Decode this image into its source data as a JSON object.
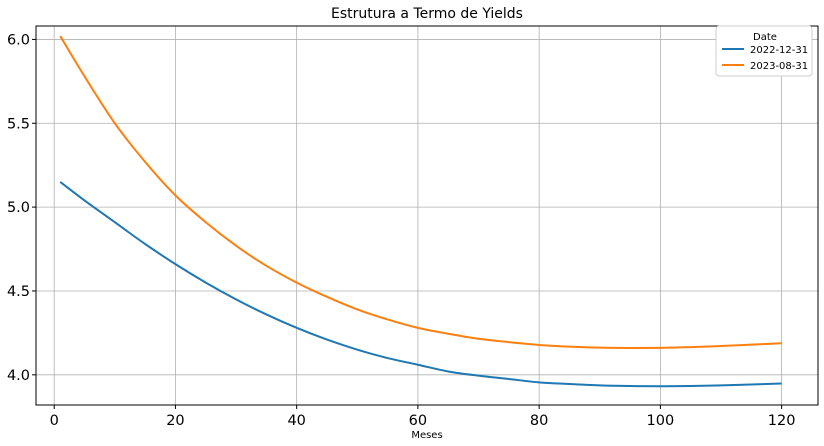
{
  "chart_data": {
    "type": "line",
    "title": "Estrutura a Termo de Yields",
    "xlabel": "Meses",
    "ylabel": "",
    "xlim": [
      -3,
      126
    ],
    "ylim": [
      3.82,
      6.08
    ],
    "xticks": [
      0,
      20,
      40,
      60,
      80,
      100,
      120
    ],
    "yticks": [
      4.0,
      4.5,
      5.0,
      5.5,
      6.0
    ],
    "xtick_labels": [
      "0",
      "20",
      "40",
      "60",
      "80",
      "100",
      "120"
    ],
    "ytick_labels": [
      "4.0",
      "4.5",
      "5.0",
      "5.5",
      "6.0"
    ],
    "grid": true,
    "legend": {
      "title": "Date",
      "position": "top-right"
    },
    "series": [
      {
        "name": "2022-12-31",
        "color": "#1f77b4",
        "x": [
          1,
          5,
          10,
          15,
          20,
          25,
          30,
          35,
          40,
          45,
          50,
          55,
          60,
          65,
          70,
          75,
          80,
          85,
          90,
          95,
          100,
          105,
          110,
          115,
          120
        ],
        "y": [
          5.15,
          5.04,
          4.91,
          4.78,
          4.66,
          4.55,
          4.45,
          4.36,
          4.28,
          4.21,
          4.15,
          4.1,
          4.06,
          4.02,
          3.995,
          3.975,
          3.955,
          3.945,
          3.937,
          3.933,
          3.932,
          3.933,
          3.937,
          3.942,
          3.948
        ]
      },
      {
        "name": "2023-08-31",
        "color": "#ff7f0e",
        "x": [
          1,
          5,
          10,
          15,
          20,
          25,
          30,
          35,
          40,
          45,
          50,
          55,
          60,
          65,
          70,
          75,
          80,
          85,
          90,
          95,
          100,
          105,
          110,
          115,
          120
        ],
        "y": [
          6.02,
          5.78,
          5.5,
          5.27,
          5.07,
          4.91,
          4.77,
          4.65,
          4.55,
          4.465,
          4.39,
          4.33,
          4.28,
          4.245,
          4.215,
          4.195,
          4.178,
          4.168,
          4.162,
          4.16,
          4.161,
          4.165,
          4.172,
          4.18,
          4.188
        ]
      }
    ]
  }
}
